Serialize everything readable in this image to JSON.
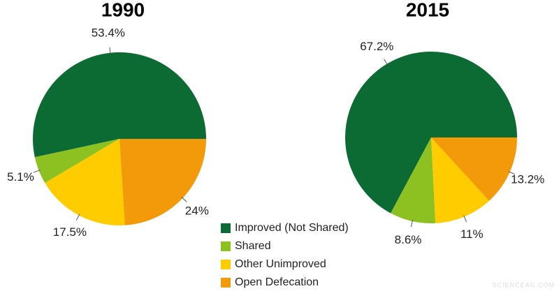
{
  "chart_data": [
    {
      "type": "pie",
      "title": "1990",
      "categories": [
        "Improved (Not Shared)",
        "Shared",
        "Other Unimproved",
        "Open Defecation"
      ],
      "values": [
        53.4,
        5.1,
        17.5,
        24
      ],
      "value_labels": [
        "53.4%",
        "5.1%",
        "17.5%",
        "24%"
      ],
      "colors": [
        "#0b6b33",
        "#8dc021",
        "#ffcc00",
        "#f39a0a"
      ]
    },
    {
      "type": "pie",
      "title": "2015",
      "categories": [
        "Improved (Not Shared)",
        "Shared",
        "Other Unimproved",
        "Open Defecation"
      ],
      "values": [
        67.2,
        8.6,
        11,
        13.2
      ],
      "value_labels": [
        "67.2%",
        "8.6%",
        "11%",
        "13.2%"
      ],
      "colors": [
        "#0b6b33",
        "#8dc021",
        "#ffcc00",
        "#f39a0a"
      ]
    }
  ],
  "watermark": "SCIENCEAG.COM"
}
